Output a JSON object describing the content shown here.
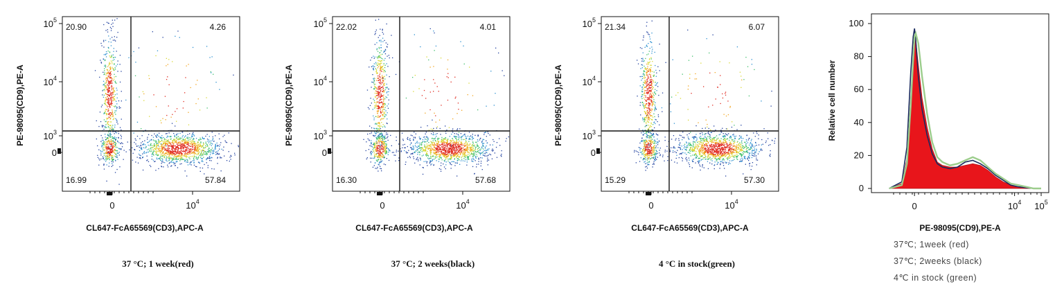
{
  "panels": [
    {
      "caption": "37 °C; 1 week(red)",
      "xlabel": "CL647-FcA65569(CD3),APC-A",
      "ylabel": "PE-98095(CD9),PE-A",
      "quadrants": {
        "upper_left": "20.90",
        "upper_right": "4.26",
        "lower_left": "16.99",
        "lower_right": "57.84"
      }
    },
    {
      "caption": "37 °C; 2 weeks(black)",
      "xlabel": "CL647-FcA65569(CD3),APC-A",
      "ylabel": "PE-98095(CD9),PE-A",
      "quadrants": {
        "upper_left": "22.02",
        "upper_right": "4.01",
        "lower_left": "16.30",
        "lower_right": "57.68"
      }
    },
    {
      "caption": "4 °C in stock(green)",
      "xlabel": "CL647-FcA65569(CD3),APC-A",
      "ylabel": "PE-98095(CD9),PE-A",
      "quadrants": {
        "upper_left": "21.34",
        "upper_right": "6.07",
        "lower_left": "15.29",
        "lower_right": "57.30"
      }
    }
  ],
  "scatter_ticks": {
    "x": [
      {
        "base": "0",
        "exp": ""
      },
      {
        "base": "10",
        "exp": "4"
      }
    ],
    "y": [
      {
        "base": "0",
        "exp": ""
      },
      {
        "base": "10",
        "exp": "3"
      },
      {
        "base": "10",
        "exp": "4"
      },
      {
        "base": "10",
        "exp": "5"
      }
    ]
  },
  "chart_data": [
    {
      "type": "scatter",
      "title": "37 °C; 1 week(red)",
      "xlabel": "CL647-FcA65569(CD3),APC-A",
      "ylabel": "PE-98095(CD9),PE-A",
      "x_scale": "biexponential",
      "y_scale": "biexponential",
      "quadrant_percentages": {
        "upper_left": 20.9,
        "upper_right": 4.26,
        "lower_left": 16.99,
        "lower_right": 57.84
      }
    },
    {
      "type": "scatter",
      "title": "37 °C; 2 weeks(black)",
      "xlabel": "CL647-FcA65569(CD3),APC-A",
      "ylabel": "PE-98095(CD9),PE-A",
      "x_scale": "biexponential",
      "y_scale": "biexponential",
      "quadrant_percentages": {
        "upper_left": 22.02,
        "upper_right": 4.01,
        "lower_left": 16.3,
        "lower_right": 57.68
      }
    },
    {
      "type": "scatter",
      "title": "4 °C in stock(green)",
      "xlabel": "CL647-FcA65569(CD3),APC-A",
      "ylabel": "PE-98095(CD9),PE-A",
      "x_scale": "biexponential",
      "y_scale": "biexponential",
      "quadrant_percentages": {
        "upper_left": 21.34,
        "upper_right": 6.07,
        "lower_left": 15.29,
        "lower_right": 57.3
      }
    },
    {
      "type": "area",
      "xlabel": "PE-98095(CD9),PE-A",
      "ylabel": "Relative cell number",
      "ylim": [
        0,
        100
      ],
      "y_ticks": [
        "0",
        "20",
        "40",
        "60",
        "80",
        "100"
      ],
      "x_ticks": [
        {
          "base": "0",
          "exp": ""
        },
        {
          "base": "10",
          "exp": "4"
        },
        {
          "base": "10",
          "exp": "5"
        }
      ],
      "x": [
        -1.0,
        -0.5,
        -0.3,
        -0.15,
        -0.05,
        0.0,
        0.05,
        0.15,
        0.3,
        0.5,
        0.7,
        0.9,
        1.1,
        1.4,
        1.7,
        2.0,
        2.3,
        2.6,
        2.9,
        3.2,
        3.5,
        3.8,
        4.1,
        4.4,
        4.7,
        5.0
      ],
      "series": [
        {
          "name": "37℃; 1week (red)",
          "color": "#e8151b",
          "values": [
            0,
            3,
            18,
            55,
            80,
            93,
            90,
            75,
            55,
            37,
            24,
            16,
            14,
            13,
            13,
            14,
            15,
            14,
            11,
            7,
            4,
            2,
            1,
            0.5,
            0,
            0
          ]
        },
        {
          "name": "37℃; 2weeks (black)",
          "color": "#1a2a5e",
          "values": [
            0,
            4,
            25,
            70,
            92,
            97,
            90,
            68,
            48,
            32,
            21,
            15,
            13,
            12,
            13,
            16,
            17,
            15,
            12,
            8,
            5,
            2,
            1,
            0.5,
            0,
            0
          ]
        },
        {
          "name": "4℃ in stock (green)",
          "color": "#9ccd8c",
          "values": [
            0,
            2,
            15,
            50,
            78,
            92,
            94,
            88,
            68,
            45,
            28,
            19,
            16,
            14,
            15,
            17,
            19,
            17,
            13,
            9,
            6,
            3,
            2,
            1,
            0,
            0
          ]
        }
      ]
    }
  ],
  "legend_lines": [
    "37℃; 1week (red)",
    "37℃; 2weeks (black)",
    "4℃ in stock (green)"
  ]
}
